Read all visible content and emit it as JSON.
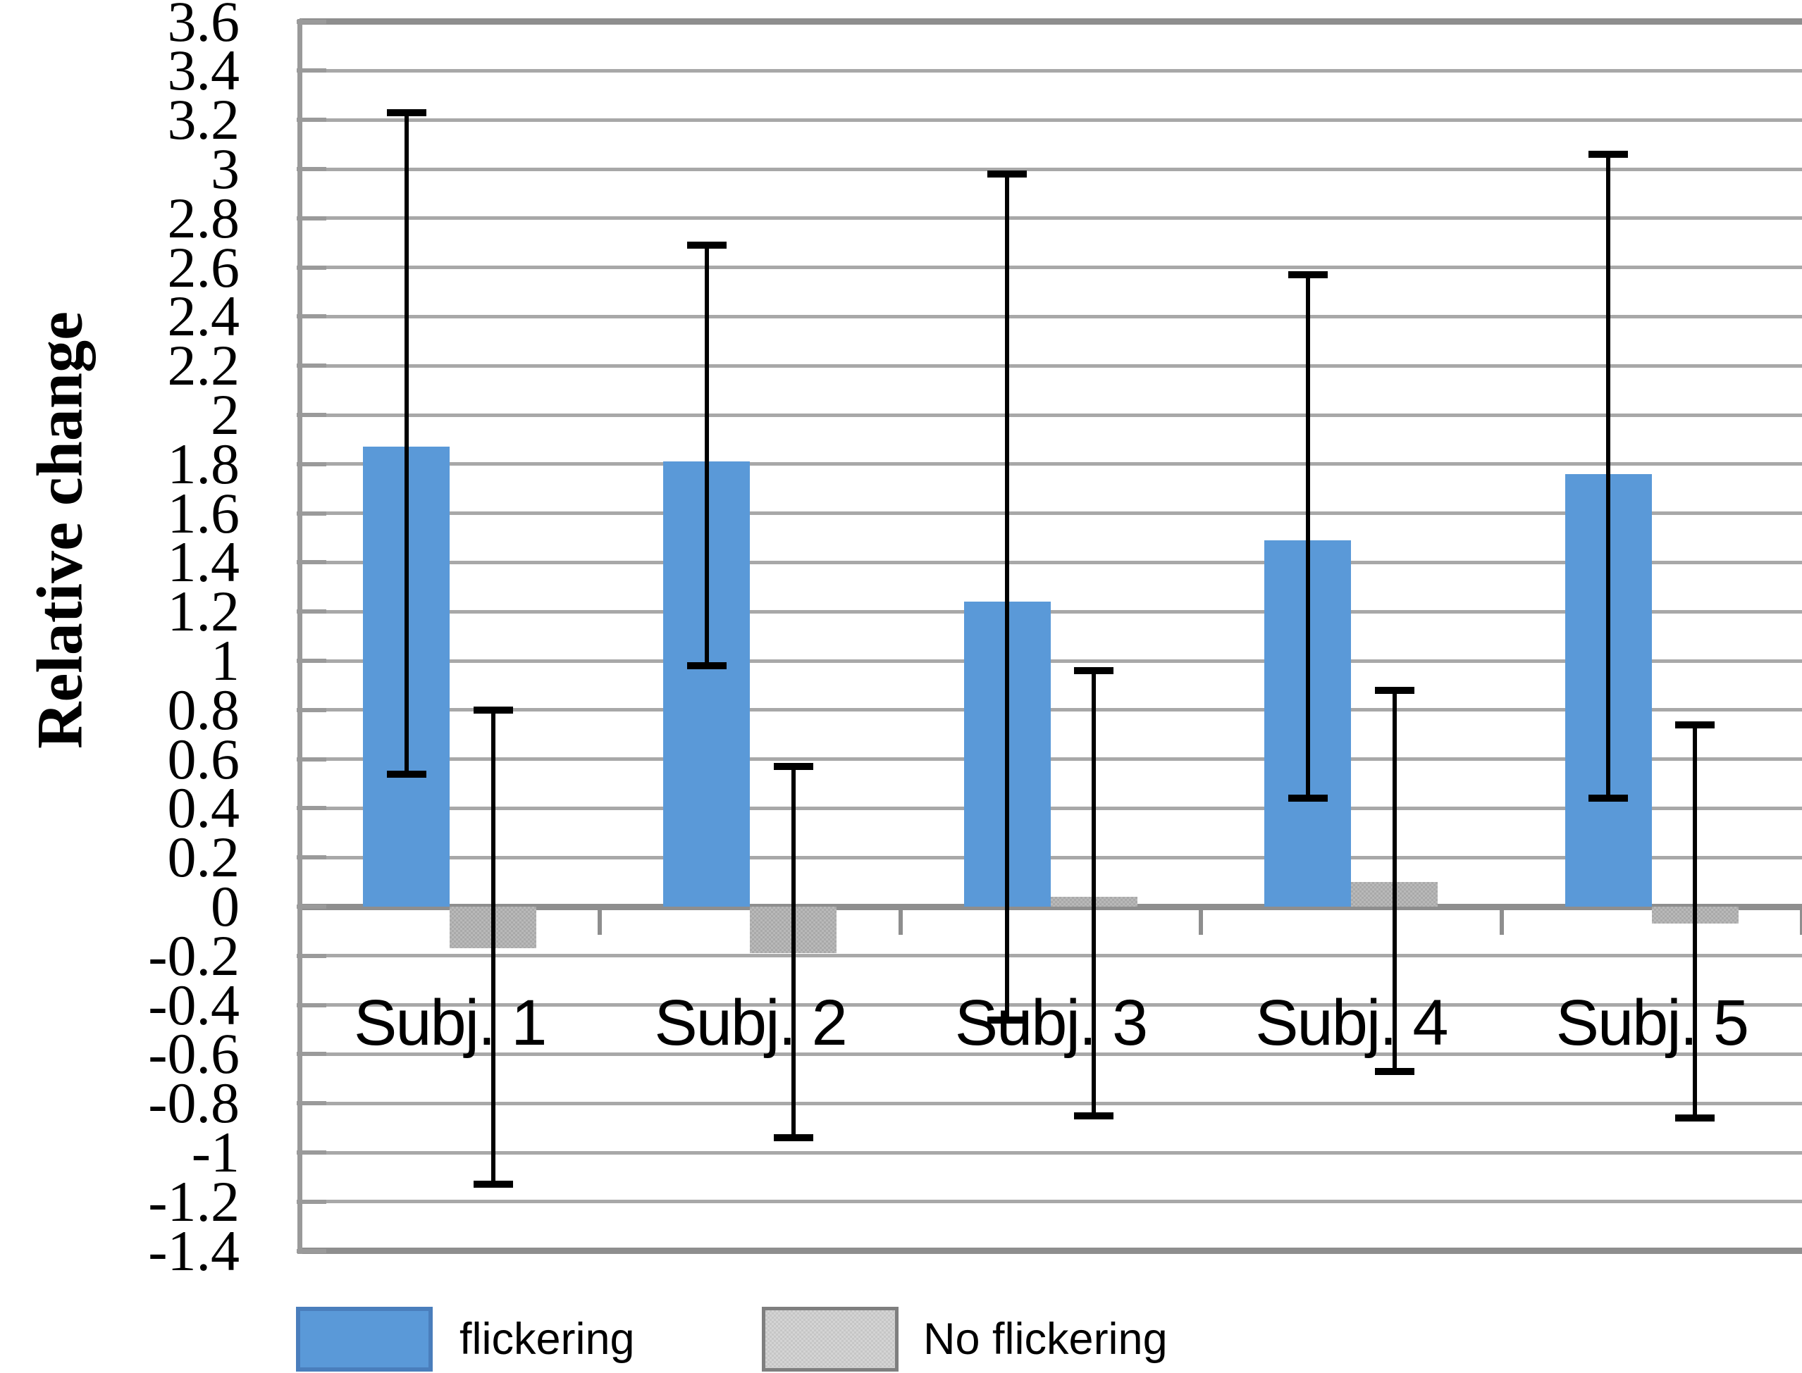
{
  "chart_data": {
    "type": "bar",
    "title": "",
    "xlabel": "",
    "ylabel": "Relative change",
    "categories": [
      "Subj. 1",
      "Subj. 2",
      "Subj. 3",
      "Subj. 4",
      "Subj. 5"
    ],
    "series": [
      {
        "name": "flickering",
        "values": [
          1.87,
          1.81,
          1.24,
          1.49,
          1.76
        ],
        "error_high": [
          3.23,
          2.69,
          2.98,
          2.57,
          3.06
        ],
        "error_low": [
          0.54,
          0.98,
          -0.46,
          0.44,
          0.44
        ]
      },
      {
        "name": "No flickering",
        "values": [
          -0.17,
          -0.19,
          0.04,
          0.1,
          -0.07
        ],
        "error_high": [
          0.8,
          0.57,
          0.96,
          0.88,
          0.74
        ],
        "error_low": [
          -1.13,
          -0.94,
          -0.85,
          -0.67,
          -0.86
        ]
      }
    ],
    "ylim": [
      -1.4,
      3.6
    ],
    "y_tick_step": 0.2,
    "y_tick_labels": [
      "3.6",
      "3.4",
      "3.2",
      "3",
      "2.8",
      "2.6",
      "2.4",
      "2.2",
      "2",
      "1.8",
      "1.6",
      "1.4",
      "1.2",
      "1",
      "0.8",
      "0.6",
      "0.4",
      "0.2",
      "0",
      "-0.2",
      "-0.4",
      "-0.6",
      "-0.8",
      "-1",
      "-1.2",
      "-1.4"
    ],
    "grid": "on",
    "legend_position": "bottom",
    "legend": {
      "flickering_label": "flickering",
      "no_flickering_label": "No flickering"
    },
    "colors": {
      "flickering_fill": "#5a99d8",
      "flickering_border": "#4a7ebc",
      "no_flickering_fill": "#a9a9a9",
      "no_flickering_legend_fill": "#c6c6c6",
      "no_flickering_border": "#7f7f7f",
      "gridline": "#a8a8a8",
      "gridline_major": "#8e8e8e",
      "axis_line": "#9a9a9a",
      "error_bar": "#000000",
      "text": "#000000"
    }
  }
}
